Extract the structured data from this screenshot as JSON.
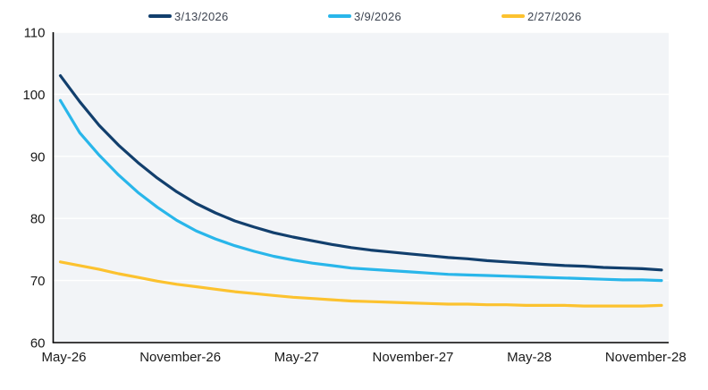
{
  "legend": {
    "items": [
      {
        "label": "3/13/2026",
        "color": "#123f6d"
      },
      {
        "label": "3/9/2026",
        "color": "#29b6ea"
      },
      {
        "label": "2/27/2026",
        "color": "#fcc22f"
      }
    ]
  },
  "colors": {
    "plot_background": "#f2f4f7",
    "grid": "#ffffff",
    "axis": "#000000",
    "tick_label": "#1a1a1a"
  },
  "chart_data": {
    "type": "line",
    "title": "",
    "xlabel": "",
    "ylabel": "",
    "ylim": [
      60,
      110
    ],
    "yticks": [
      60,
      70,
      80,
      90,
      100,
      110
    ],
    "grid": true,
    "legend_position": "top",
    "x": [
      "2026-05",
      "2026-06",
      "2026-07",
      "2026-08",
      "2026-09",
      "2026-10",
      "2026-11",
      "2026-12",
      "2027-01",
      "2027-02",
      "2027-03",
      "2027-04",
      "2027-05",
      "2027-06",
      "2027-07",
      "2027-08",
      "2027-09",
      "2027-10",
      "2027-11",
      "2027-12",
      "2028-01",
      "2028-02",
      "2028-03",
      "2028-04",
      "2028-05",
      "2028-06",
      "2028-07",
      "2028-08",
      "2028-09",
      "2028-10",
      "2028-11",
      "2028-12"
    ],
    "x_tick_indices": [
      0,
      6,
      12,
      18,
      24,
      30
    ],
    "x_tick_labels": [
      "May-26",
      "November-26",
      "May-27",
      "November-27",
      "May-28",
      "November-28"
    ],
    "series": [
      {
        "name": "3/13/2026",
        "color": "#123f6d",
        "values": [
          103.0,
          98.8,
          95.0,
          91.8,
          89.0,
          86.5,
          84.3,
          82.4,
          80.9,
          79.6,
          78.6,
          77.7,
          77.0,
          76.4,
          75.8,
          75.3,
          74.9,
          74.6,
          74.3,
          74.0,
          73.7,
          73.5,
          73.2,
          73.0,
          72.8,
          72.6,
          72.4,
          72.3,
          72.1,
          72.0,
          71.9,
          71.7
        ]
      },
      {
        "name": "3/9/2026",
        "color": "#29b6ea",
        "values": [
          99.0,
          93.8,
          90.2,
          87.0,
          84.2,
          81.8,
          79.7,
          78.0,
          76.7,
          75.6,
          74.7,
          73.9,
          73.3,
          72.8,
          72.4,
          72.0,
          71.8,
          71.6,
          71.4,
          71.2,
          71.0,
          70.9,
          70.8,
          70.7,
          70.6,
          70.5,
          70.4,
          70.3,
          70.2,
          70.1,
          70.1,
          70.0
        ]
      },
      {
        "name": "2/27/2026",
        "color": "#fcc22f",
        "values": [
          73.0,
          72.4,
          71.8,
          71.1,
          70.5,
          69.9,
          69.4,
          69.0,
          68.6,
          68.2,
          67.9,
          67.6,
          67.3,
          67.1,
          66.9,
          66.7,
          66.6,
          66.5,
          66.4,
          66.3,
          66.2,
          66.2,
          66.1,
          66.1,
          66.0,
          66.0,
          66.0,
          65.9,
          65.9,
          65.9,
          65.9,
          66.0
        ]
      }
    ]
  }
}
